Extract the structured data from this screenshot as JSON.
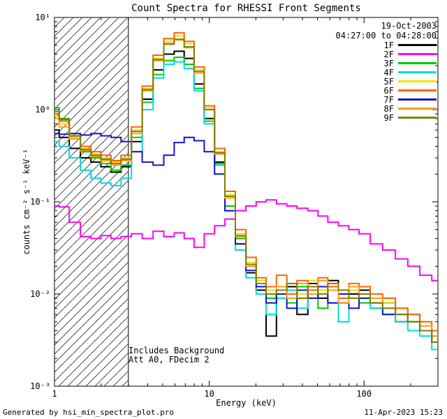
{
  "title": "Count Spectra for RHESSI Front Segments",
  "header": {
    "date": "19-Oct-2003",
    "time_range": "04:27:00 to 04:28:00"
  },
  "annotations": {
    "line1": "Includes Background",
    "line2": "Att A0, FDecim 2"
  },
  "footer": {
    "left": "Generated by hsi_min_spectra_plot.pro",
    "right": "11-Apr-2023 15:23"
  },
  "chart_data": {
    "type": "line",
    "mode": "histogram-step",
    "x_scale": "log",
    "y_scale": "log",
    "title": "Count Spectra for RHESSI Front Segments",
    "xlabel": "Energy (keV)",
    "ylabel": "counts cm⁻² s⁻¹ keV⁻¹",
    "xlim": [
      1,
      300
    ],
    "ylim": [
      0.001,
      10
    ],
    "xticks": [
      {
        "v": 1,
        "label": "1"
      },
      {
        "v": 10,
        "label": "10"
      },
      {
        "v": 100,
        "label": "100"
      }
    ],
    "yticks": [
      {
        "v": 10,
        "label": "10¹"
      },
      {
        "v": 1,
        "label": "10⁰"
      },
      {
        "v": 0.1,
        "label": "10⁻¹"
      },
      {
        "v": 0.01,
        "label": "10⁻²"
      },
      {
        "v": 0.001,
        "label": "10⁻³"
      }
    ],
    "hatch_region": {
      "from": 1,
      "to": 3
    },
    "energy_kev": [
      1.0,
      1.15,
      1.35,
      1.6,
      1.85,
      2.15,
      2.5,
      2.9,
      3.4,
      4.0,
      4.7,
      5.5,
      6.4,
      7.4,
      8.6,
      10,
      11.7,
      13.6,
      16,
      18.6,
      21.7,
      25,
      29.5,
      34,
      40,
      47,
      54,
      63,
      74,
      86,
      100,
      120,
      145,
      175,
      210,
      250,
      300
    ],
    "series": [
      {
        "name": "1F",
        "color": "#000000",
        "values": [
          0.6,
          0.5,
          0.38,
          0.3,
          0.27,
          0.24,
          0.21,
          0.24,
          0.45,
          1.3,
          2.7,
          4.0,
          4.3,
          3.6,
          1.9,
          0.8,
          0.27,
          0.09,
          0.035,
          0.017,
          0.011,
          0.0035,
          0.01,
          0.012,
          0.006,
          0.013,
          0.009,
          0.014,
          0.008,
          0.01,
          0.011,
          0.007,
          0.008,
          0.005,
          0.006,
          0.004,
          0.003
        ]
      },
      {
        "name": "2F",
        "color": "#ff00ff",
        "values": [
          0.09,
          0.088,
          0.06,
          0.042,
          0.04,
          0.043,
          0.04,
          0.042,
          0.045,
          0.04,
          0.048,
          0.042,
          0.046,
          0.04,
          0.032,
          0.045,
          0.055,
          0.065,
          0.08,
          0.09,
          0.1,
          0.105,
          0.095,
          0.09,
          0.085,
          0.08,
          0.07,
          0.06,
          0.055,
          0.05,
          0.045,
          0.035,
          0.03,
          0.024,
          0.02,
          0.016,
          0.014
        ]
      },
      {
        "name": "3F",
        "color": "#00c800",
        "values": [
          1.05,
          0.8,
          0.5,
          0.35,
          0.3,
          0.26,
          0.22,
          0.25,
          0.5,
          1.2,
          2.4,
          3.4,
          3.7,
          3.1,
          1.7,
          0.75,
          0.26,
          0.09,
          0.04,
          0.02,
          0.012,
          0.009,
          0.011,
          0.008,
          0.012,
          0.01,
          0.007,
          0.012,
          0.009,
          0.011,
          0.008,
          0.009,
          0.006,
          0.007,
          0.005,
          0.004,
          0.003
        ]
      },
      {
        "name": "4F",
        "color": "#00dcdc",
        "values": [
          0.45,
          0.4,
          0.3,
          0.22,
          0.18,
          0.16,
          0.15,
          0.18,
          0.35,
          1.0,
          2.2,
          3.1,
          3.3,
          2.8,
          1.6,
          0.7,
          0.25,
          0.08,
          0.03,
          0.015,
          0.01,
          0.006,
          0.009,
          0.011,
          0.007,
          0.01,
          0.012,
          0.008,
          0.005,
          0.009,
          0.01,
          0.007,
          0.006,
          0.005,
          0.004,
          0.0035,
          0.0025
        ]
      },
      {
        "name": "5F",
        "color": "#e6e600",
        "values": [
          0.85,
          0.7,
          0.5,
          0.38,
          0.33,
          0.3,
          0.27,
          0.3,
          0.6,
          1.7,
          3.6,
          5.5,
          6.3,
          5.2,
          2.7,
          1.05,
          0.35,
          0.12,
          0.045,
          0.022,
          0.014,
          0.011,
          0.01,
          0.013,
          0.01,
          0.014,
          0.011,
          0.013,
          0.01,
          0.011,
          0.012,
          0.009,
          0.008,
          0.007,
          0.006,
          0.005,
          0.0035
        ]
      },
      {
        "name": "6F",
        "color": "#ff6400",
        "values": [
          0.9,
          0.75,
          0.55,
          0.4,
          0.35,
          0.32,
          0.28,
          0.32,
          0.65,
          1.8,
          3.9,
          5.9,
          6.8,
          5.5,
          2.9,
          1.1,
          0.38,
          0.13,
          0.05,
          0.025,
          0.015,
          0.012,
          0.016,
          0.01,
          0.014,
          0.011,
          0.015,
          0.012,
          0.009,
          0.013,
          0.012,
          0.01,
          0.009,
          0.007,
          0.006,
          0.005,
          0.004
        ]
      },
      {
        "name": "7F",
        "color": "#1414c8",
        "values": [
          0.55,
          0.54,
          0.55,
          0.53,
          0.55,
          0.52,
          0.5,
          0.45,
          0.35,
          0.27,
          0.25,
          0.32,
          0.44,
          0.5,
          0.46,
          0.35,
          0.2,
          0.08,
          0.035,
          0.018,
          0.012,
          0.008,
          0.01,
          0.007,
          0.011,
          0.009,
          0.012,
          0.008,
          0.01,
          0.007,
          0.009,
          0.008,
          0.006,
          0.006,
          0.005,
          0.004,
          0.003
        ]
      },
      {
        "name": "8F",
        "color": "#ff9c1e",
        "values": [
          0.8,
          0.65,
          0.48,
          0.36,
          0.31,
          0.28,
          0.25,
          0.28,
          0.55,
          1.6,
          3.4,
          5.1,
          5.7,
          4.7,
          2.5,
          1.0,
          0.33,
          0.11,
          0.042,
          0.02,
          0.013,
          0.01,
          0.012,
          0.009,
          0.013,
          0.01,
          0.014,
          0.011,
          0.008,
          0.012,
          0.01,
          0.009,
          0.007,
          0.006,
          0.005,
          0.0045,
          0.0035
        ]
      },
      {
        "name": "9F",
        "color": "#808000",
        "values": [
          0.95,
          0.78,
          0.52,
          0.37,
          0.32,
          0.29,
          0.26,
          0.29,
          0.58,
          1.65,
          3.5,
          5.2,
          5.8,
          4.8,
          2.6,
          1.0,
          0.34,
          0.115,
          0.043,
          0.021,
          0.013,
          0.01,
          0.011,
          0.013,
          0.009,
          0.012,
          0.01,
          0.013,
          0.011,
          0.009,
          0.01,
          0.008,
          0.007,
          0.006,
          0.005,
          0.004,
          0.003
        ]
      }
    ],
    "legend_position": "top-right",
    "grid": false
  }
}
